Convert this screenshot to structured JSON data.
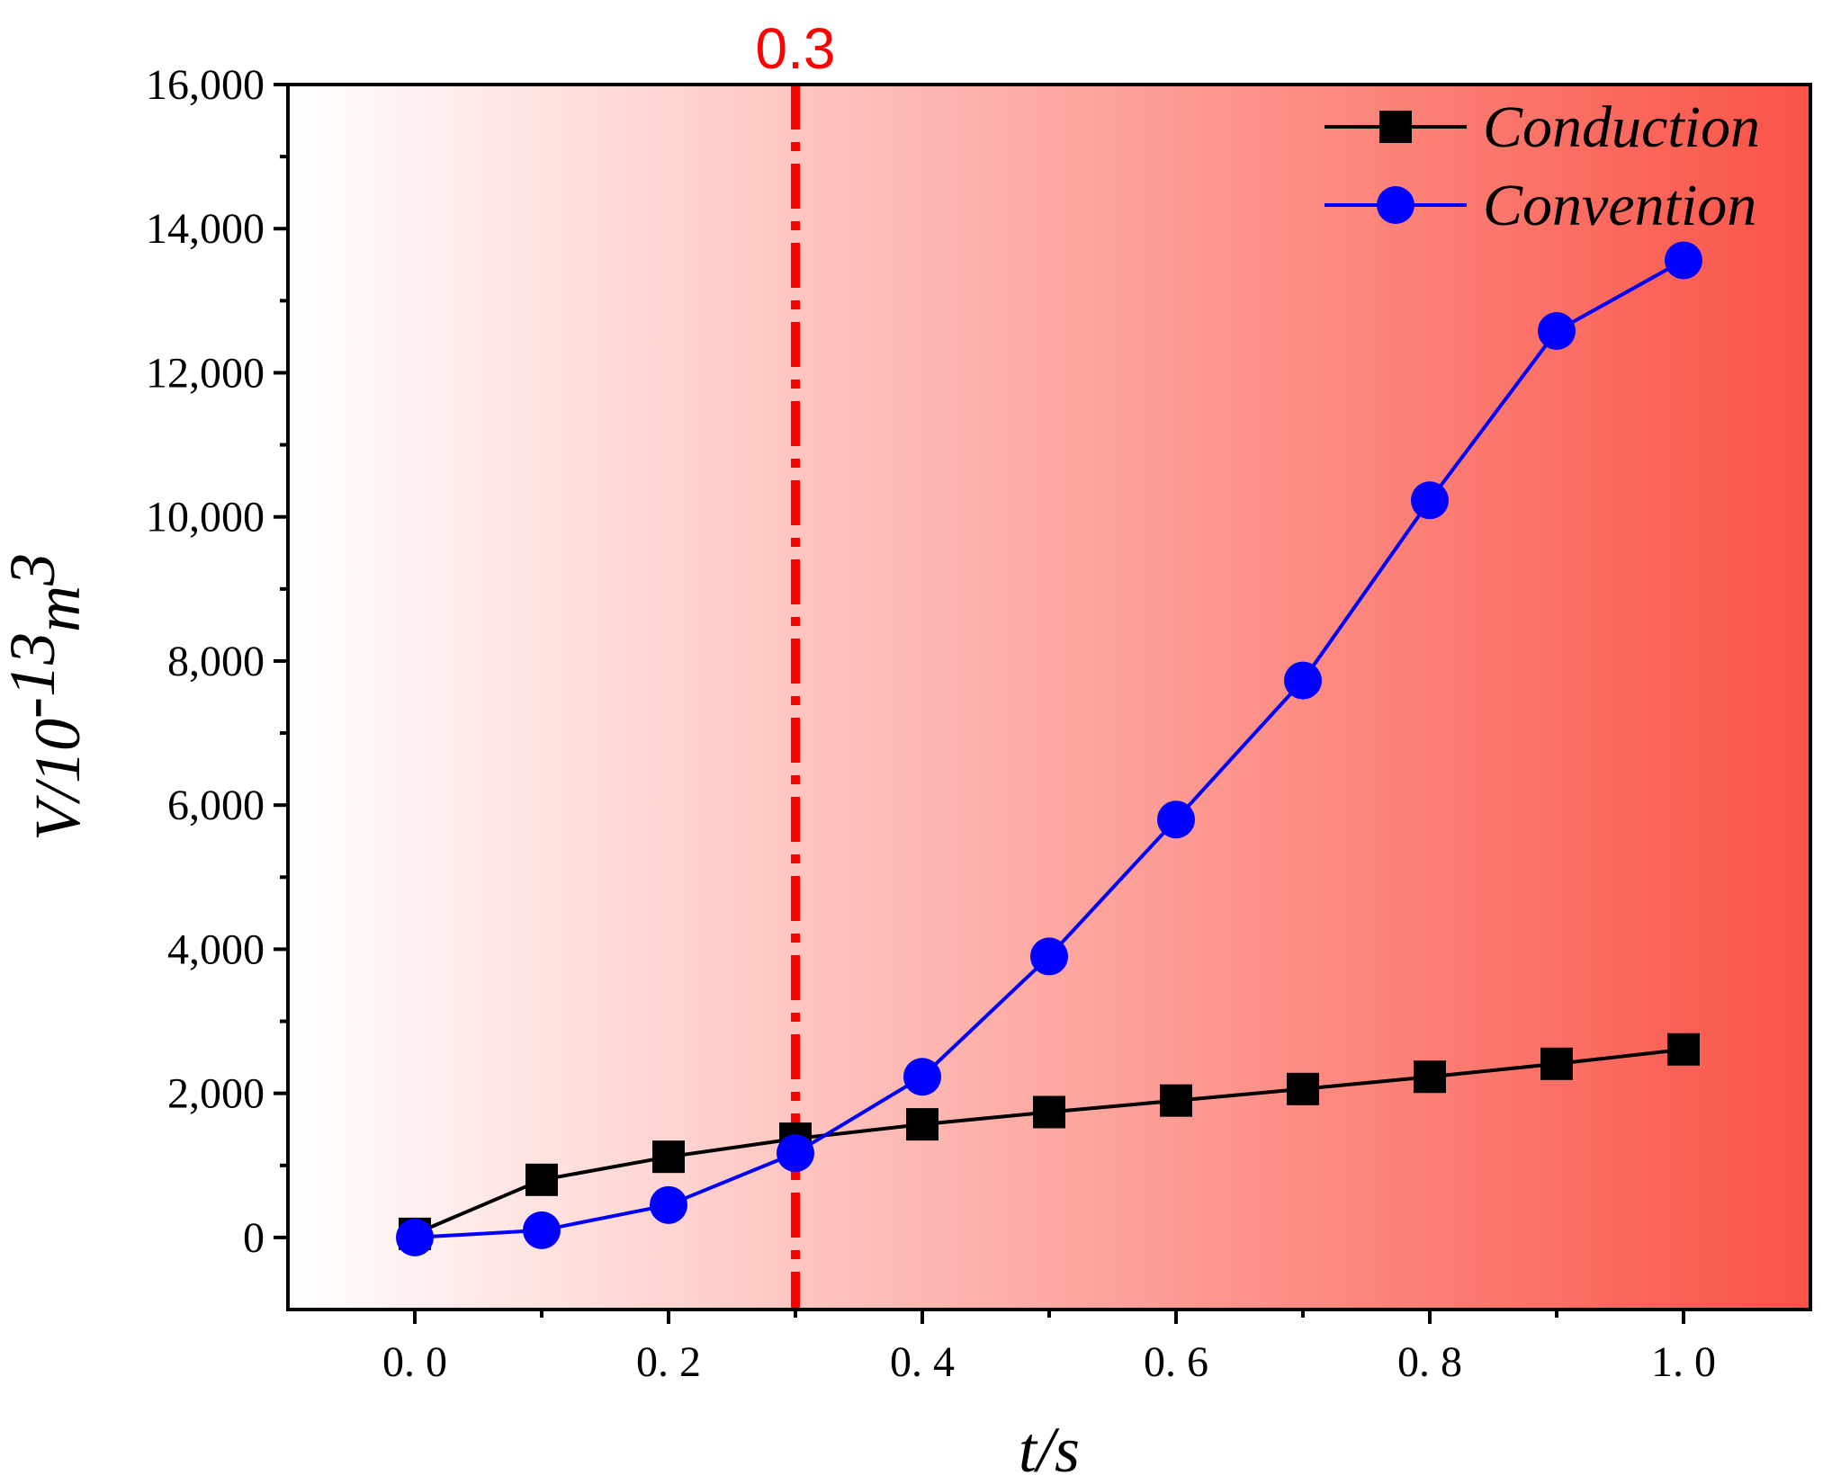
{
  "chart_data": {
    "type": "line",
    "title": "",
    "xlabel": "t/s",
    "ylabel": {
      "base": "V/10",
      "exp": "-13",
      "unit": "m",
      "unit_exp": "3"
    },
    "xlim": [
      -0.1,
      1.1
    ],
    "ylim": [
      -1000,
      16000
    ],
    "x": [
      0.0,
      0.1,
      0.2,
      0.3,
      0.4,
      0.5,
      0.6,
      0.7,
      0.8,
      0.9,
      1.0
    ],
    "x_ticks": [
      {
        "value": 0.0,
        "label": "0. 0"
      },
      {
        "value": 0.2,
        "label": "0. 2"
      },
      {
        "value": 0.4,
        "label": "0. 4"
      },
      {
        "value": 0.6,
        "label": "0. 6"
      },
      {
        "value": 0.8,
        "label": "0. 8"
      },
      {
        "value": 1.0,
        "label": "1. 0"
      }
    ],
    "y_ticks": [
      {
        "value": 0,
        "label": "0"
      },
      {
        "value": 2000,
        "label": "2,000"
      },
      {
        "value": 4000,
        "label": "4,000"
      },
      {
        "value": 6000,
        "label": "6,000"
      },
      {
        "value": 8000,
        "label": "8,000"
      },
      {
        "value": 10000,
        "label": "10,000"
      },
      {
        "value": 12000,
        "label": "12,000"
      },
      {
        "value": 14000,
        "label": "14,000"
      },
      {
        "value": 16000,
        "label": "16,000"
      }
    ],
    "series": [
      {
        "name": "Conduction",
        "color": "#000000",
        "marker": "square",
        "values": [
          50,
          800,
          1120,
          1370,
          1570,
          1740,
          1900,
          2060,
          2230,
          2410,
          2610
        ]
      },
      {
        "name": "Convention",
        "color": "#0000ff",
        "marker": "circle",
        "values": [
          0,
          100,
          450,
          1170,
          2230,
          3900,
          5800,
          7730,
          10230,
          12580,
          13560
        ]
      }
    ],
    "reference_line": {
      "x": 0.3,
      "label": "0.3",
      "color": "#ff0000"
    },
    "background_gradient": {
      "from": "#ffffff",
      "to": "#fa5346"
    },
    "legend_position": "top-right",
    "grid": false
  }
}
